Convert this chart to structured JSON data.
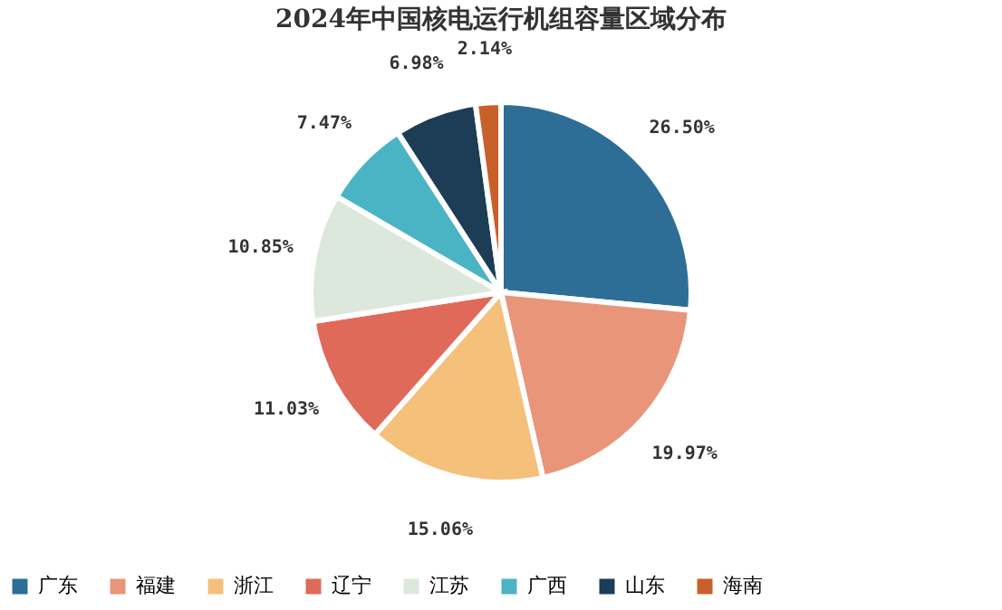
{
  "chart_data": {
    "type": "pie",
    "title": "2024年中国核电运行机组容量区域分布",
    "categories": [
      "广东",
      "福建",
      "浙江",
      "辽宁",
      "江苏",
      "广西",
      "山东",
      "海南"
    ],
    "values": [
      26.5,
      19.97,
      15.06,
      11.03,
      10.85,
      7.47,
      6.98,
      2.14
    ],
    "value_labels": [
      "26.50%",
      "19.97%",
      "15.06%",
      "11.03%",
      "10.85%",
      "7.47%",
      "6.98%",
      "2.14%"
    ],
    "colors": [
      "#2e6e96",
      "#e8957a",
      "#f5c07a",
      "#e06a5a",
      "#dde8dc",
      "#4bb4c4",
      "#1c3d55",
      "#c8602a"
    ],
    "legend": "bottom"
  }
}
